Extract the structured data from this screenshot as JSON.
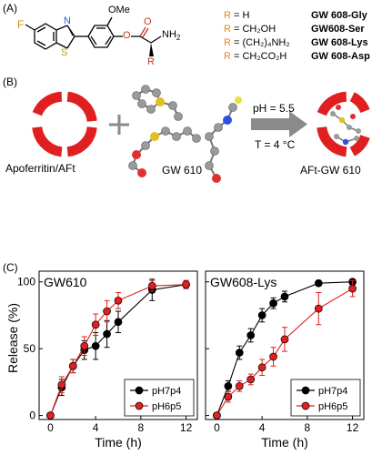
{
  "panels": {
    "a_label": "(A)",
    "b_label": "(B)",
    "c_label": "(C)"
  },
  "structure": {
    "atoms": {
      "F": "F",
      "N": "N",
      "S": "S",
      "O": "O",
      "OMe": "OMe",
      "NH2": "NH",
      "NH2_sub": "2",
      "R": "R"
    }
  },
  "r_table": [
    {
      "r": "R",
      "eq": "= H",
      "compound": "GW 608-Gly"
    },
    {
      "r": "R",
      "eq": "= CH₂OH",
      "compound": "GW608-Ser"
    },
    {
      "r": "R",
      "eq": "= (CH₂)₄NH₂",
      "compound": "GW 608-Lys"
    },
    {
      "r": "R",
      "eq": "= CH₂CO₂H",
      "compound": "GW 608-Asp"
    }
  ],
  "scheme": {
    "apoferritin_label": "Apoferritin/AFt",
    "drug_label": "GW 610",
    "product_label": "AFt-GW 610",
    "condition_ph": "pH = 5.5",
    "condition_t": "T = 4 °C",
    "plus": "+",
    "colors": {
      "ring": "#e02020",
      "arrow": "#8a8a8a",
      "atom": "#a0a0a0",
      "sulfur": "#e0c020",
      "fluorine": "#e6e040",
      "oxygen": "#e03030",
      "nitrogen": "#3050e0"
    }
  },
  "chart_data": [
    {
      "type": "line",
      "title": "GW610",
      "xlabel": "Time (h)",
      "ylabel": "Release (%)",
      "xlim": [
        -1,
        13
      ],
      "ylim": [
        -3,
        108
      ],
      "xticks": [
        0,
        4,
        8,
        12
      ],
      "yticks": [
        0,
        50,
        100
      ],
      "legend_position": "bottom-right",
      "series": [
        {
          "name": "pH7p4",
          "color": "#000000",
          "x": [
            0,
            1,
            2,
            3,
            4,
            5,
            6,
            9,
            12
          ],
          "y": [
            0,
            21,
            37,
            49,
            52,
            61,
            70,
            94,
            98
          ],
          "err": [
            2,
            6,
            5,
            7,
            10,
            10,
            8,
            8,
            3
          ]
        },
        {
          "name": "pH6p5",
          "color": "#e02020",
          "x": [
            0,
            1,
            2,
            3,
            4,
            5,
            6,
            9,
            12
          ],
          "y": [
            0,
            23,
            37,
            52,
            68,
            78,
            86,
            97,
            98
          ],
          "err": [
            2,
            6,
            5,
            7,
            8,
            8,
            6,
            4,
            3
          ]
        }
      ]
    },
    {
      "type": "line",
      "title": "GW608-Lys",
      "xlabel": "Time (h)",
      "ylabel": "",
      "xlim": [
        -1,
        13
      ],
      "ylim": [
        -3,
        108
      ],
      "xticks": [
        0,
        4,
        8,
        12
      ],
      "yticks": [
        0,
        50,
        100
      ],
      "legend_position": "bottom-right",
      "series": [
        {
          "name": "pH7p4",
          "color": "#000000",
          "x": [
            0,
            1,
            2,
            3,
            4,
            5,
            6,
            9,
            12
          ],
          "y": [
            0,
            22,
            47,
            60,
            75,
            84,
            89,
            99,
            100
          ],
          "err": [
            2,
            4,
            5,
            5,
            5,
            4,
            4,
            2,
            2
          ]
        },
        {
          "name": "pH6p5",
          "color": "#e02020",
          "x": [
            0,
            1,
            2,
            3,
            4,
            5,
            6,
            9,
            12
          ],
          "y": [
            0,
            14,
            22,
            27,
            36,
            44,
            57,
            80,
            95
          ],
          "err": [
            2,
            4,
            4,
            4,
            6,
            7,
            9,
            12,
            6
          ]
        }
      ]
    }
  ]
}
